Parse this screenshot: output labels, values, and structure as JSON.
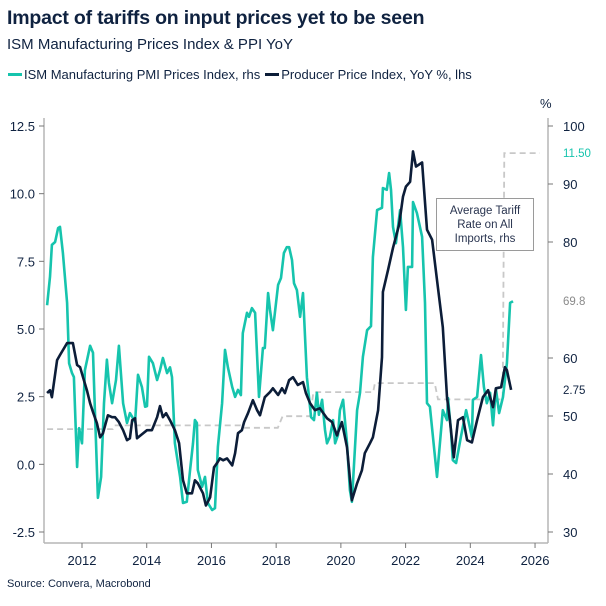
{
  "title": "Impact of tariffs on input prices yet to be seen",
  "subtitle": "ISM Manufacturing Prices Index & PPI YoY",
  "source": "Source: Convera, Macrobond",
  "colors": {
    "ism": "#16c4ad",
    "ppi": "#0c1d38",
    "tariff": "#c8c8c8",
    "axis": "#b5b5b5"
  },
  "chart_data": {
    "type": "line",
    "title": "Impact of tariffs on input prices yet to be seen",
    "legend_position": "top-left",
    "x_ticks": [
      "2012",
      "2014",
      "2016",
      "2018",
      "2020",
      "2022",
      "2024",
      "2026"
    ],
    "xlim": [
      2010.92,
      2026.5
    ],
    "left_axis": {
      "ticks": [
        "12.5",
        "10.0",
        "7.5",
        "5.0",
        "2.5",
        "0.0",
        "-2.5"
      ],
      "ylim": [
        -2.5,
        12.5
      ]
    },
    "right_axis": {
      "unit": "%",
      "ticks": [
        "100",
        "90",
        "80",
        "60",
        "50",
        "40",
        "30"
      ],
      "ylim": [
        30,
        100
      ]
    },
    "annotation": {
      "line1": "Average Tariff",
      "line2": "Rate on All",
      "line3": "Imports, rhs"
    },
    "end_labels": {
      "tariff": "11.50",
      "ism": "69.8",
      "ppi": "2.75"
    },
    "series": [
      {
        "name": "ISM Manufacturing PMI Prices Index, rhs",
        "axis": "right",
        "x": [
          2010.92,
          2011.01,
          2011.07,
          2011.17,
          2011.26,
          2011.32,
          2011.41,
          2011.54,
          2011.6,
          2011.69,
          2011.75,
          2011.85,
          2011.91,
          2012.0,
          2012.09,
          2012.25,
          2012.34,
          2012.4,
          2012.49,
          2012.59,
          2012.68,
          2012.77,
          2012.83,
          2012.93,
          2013.05,
          2013.14,
          2013.27,
          2013.39,
          2013.48,
          2013.64,
          2013.73,
          2013.85,
          2013.95,
          2014.01,
          2014.07,
          2014.19,
          2014.32,
          2014.41,
          2014.5,
          2014.63,
          2014.72,
          2014.78,
          2014.87,
          2015.03,
          2015.12,
          2015.24,
          2015.34,
          2015.43,
          2015.49,
          2015.55,
          2015.58,
          2015.71,
          2015.8,
          2015.89,
          2016.02,
          2016.11,
          2016.2,
          2016.33,
          2016.42,
          2016.51,
          2016.64,
          2016.73,
          2016.82,
          2016.91,
          2016.97,
          2017.1,
          2017.16,
          2017.25,
          2017.35,
          2017.47,
          2017.59,
          2017.65,
          2017.75,
          2017.81,
          2017.9,
          2018.06,
          2018.15,
          2018.24,
          2018.33,
          2018.4,
          2018.49,
          2018.55,
          2018.64,
          2018.74,
          2018.83,
          2018.95,
          2019.08,
          2019.17,
          2019.26,
          2019.32,
          2019.42,
          2019.51,
          2019.57,
          2019.66,
          2019.76,
          2019.82,
          2019.91,
          2019.97,
          2020.07,
          2020.19,
          2020.28,
          2020.34,
          2020.5,
          2020.59,
          2020.68,
          2020.81,
          2020.93,
          2020.99,
          2021.12,
          2021.27,
          2021.3,
          2021.42,
          2021.49,
          2021.55,
          2021.61,
          2021.7,
          2021.83,
          2021.92,
          2022.01,
          2022.07,
          2022.2,
          2022.23,
          2022.35,
          2022.51,
          2022.6,
          2022.66,
          2022.75,
          2022.97,
          2023.15,
          2023.28,
          2023.31,
          2023.4,
          2023.46,
          2023.56,
          2023.71,
          2023.87,
          2024.05,
          2024.08,
          2024.21,
          2024.33,
          2024.42,
          2024.51,
          2024.61,
          2024.7,
          2024.79,
          2024.89,
          2025.01,
          2025.13,
          2025.23,
          2025.32
        ],
        "values": [
          69.1,
          74.0,
          79.5,
          80.0,
          82.4,
          82.6,
          78.1,
          69.5,
          59.1,
          57.4,
          56.7,
          41.2,
          47.9,
          45.3,
          57.9,
          62.1,
          60.9,
          51.0,
          35.9,
          39.5,
          52.2,
          59.7,
          55.7,
          52.2,
          56.2,
          62.1,
          52.2,
          48.8,
          50.5,
          49.0,
          57.1,
          55.0,
          51.6,
          51.7,
          60.2,
          59.1,
          56.2,
          57.9,
          60.0,
          57.4,
          58.4,
          56.7,
          45.3,
          39.5,
          35.0,
          35.2,
          40.7,
          45.3,
          49.3,
          48.8,
          40.7,
          37.8,
          39.5,
          35.0,
          33.8,
          34.1,
          44.7,
          52.2,
          61.4,
          58.4,
          55.0,
          53.3,
          54.5,
          53.6,
          64.3,
          67.8,
          67.1,
          68.6,
          67.8,
          53.3,
          61.7,
          61.7,
          71.2,
          68.3,
          64.8,
          72.6,
          73.8,
          78.1,
          79.1,
          79.1,
          76.9,
          72.9,
          71.7,
          67.1,
          71.2,
          56.7,
          49.8,
          49.3,
          54.0,
          50.2,
          52.8,
          47.6,
          45.3,
          46.4,
          49.3,
          45.3,
          46.7,
          51.0,
          52.8,
          45.3,
          37.2,
          35.2,
          51.0,
          54.0,
          60.2,
          64.8,
          65.5,
          77.4,
          85.5,
          85.9,
          89.3,
          89.0,
          91.9,
          89.0,
          82.6,
          79.8,
          85.5,
          79.1,
          68.3,
          75.7,
          75.7,
          86.9,
          85.0,
          80.9,
          69.5,
          52.2,
          51.6,
          39.5,
          51.0,
          49.3,
          53.1,
          47.6,
          42.4,
          41.9,
          46.4,
          51.0,
          46.4,
          52.8,
          53.3,
          60.5,
          55.0,
          52.2,
          54.0,
          48.4,
          54.7,
          50.5,
          53.3,
          59.1,
          69.5,
          69.8
        ]
      },
      {
        "name": "Producer Price Index, YoY %, lhs",
        "axis": "left",
        "x": [
          2010.92,
          2011.01,
          2011.07,
          2011.23,
          2011.32,
          2011.41,
          2011.54,
          2011.72,
          2011.85,
          2011.94,
          2012.03,
          2012.15,
          2012.25,
          2012.34,
          2012.46,
          2012.56,
          2012.65,
          2012.8,
          2012.93,
          2013.02,
          2013.14,
          2013.27,
          2013.39,
          2013.48,
          2013.55,
          2013.64,
          2013.7,
          2013.89,
          2014.01,
          2014.16,
          2014.32,
          2014.41,
          2014.5,
          2014.6,
          2014.72,
          2014.87,
          2015.0,
          2015.12,
          2015.24,
          2015.4,
          2015.49,
          2015.58,
          2015.74,
          2015.83,
          2015.96,
          2016.08,
          2016.17,
          2016.26,
          2016.36,
          2016.48,
          2016.64,
          2016.73,
          2016.82,
          2016.94,
          2017.01,
          2017.13,
          2017.28,
          2017.41,
          2017.5,
          2017.65,
          2017.81,
          2017.9,
          2018.06,
          2018.18,
          2018.27,
          2018.4,
          2018.52,
          2018.67,
          2018.83,
          2018.92,
          2019.05,
          2019.2,
          2019.35,
          2019.57,
          2019.73,
          2019.88,
          2020.03,
          2020.19,
          2020.34,
          2020.5,
          2020.65,
          2020.74,
          2020.9,
          2020.99,
          2021.15,
          2021.27,
          2021.3,
          2021.46,
          2021.61,
          2021.8,
          2021.92,
          2022.01,
          2022.14,
          2022.23,
          2022.32,
          2022.51,
          2022.66,
          2022.82,
          2022.97,
          2023.15,
          2023.28,
          2023.37,
          2023.49,
          2023.62,
          2023.77,
          2023.9,
          2024.05,
          2024.21,
          2024.39,
          2024.55,
          2024.7,
          2024.79,
          2024.95,
          2025.07,
          2025.13,
          2025.26
        ],
        "values": [
          2.63,
          2.74,
          2.48,
          3.85,
          4.04,
          4.22,
          4.48,
          4.48,
          3.67,
          3.59,
          3.22,
          2.74,
          2.26,
          1.93,
          1.52,
          1.0,
          1.15,
          1.81,
          1.74,
          1.74,
          1.56,
          1.26,
          0.89,
          0.96,
          1.63,
          1.7,
          0.96,
          1.15,
          1.26,
          1.26,
          1.74,
          2.15,
          1.74,
          1.89,
          1.63,
          1.26,
          0.78,
          -0.59,
          -1.07,
          -1.07,
          -0.59,
          -0.7,
          -1.07,
          -1.52,
          -1.22,
          -0.11,
          0.04,
          0.22,
          0.15,
          0.22,
          -0.04,
          0.41,
          1.15,
          1.26,
          1.56,
          1.89,
          2.37,
          2.0,
          1.81,
          2.48,
          2.67,
          2.81,
          2.56,
          2.81,
          2.63,
          3.11,
          3.22,
          2.93,
          3.04,
          2.63,
          2.26,
          2.0,
          2.07,
          1.7,
          1.56,
          1.07,
          1.56,
          0.63,
          -1.33,
          -0.7,
          -0.22,
          0.41,
          0.78,
          1.0,
          2.0,
          3.96,
          6.37,
          7.19,
          8.0,
          8.85,
          9.89,
          10.26,
          10.44,
          11.56,
          11.0,
          11.15,
          8.67,
          8.3,
          6.81,
          5.07,
          2.48,
          1.63,
          0.26,
          1.63,
          1.74,
          0.89,
          0.81,
          1.63,
          2.48,
          2.74,
          2.11,
          2.81,
          2.85,
          3.59,
          3.48,
          2.75
        ]
      },
      {
        "name": "Average Tariff Rate on All Imports, rhs",
        "axis": "left",
        "style": "dashed",
        "x": [
          2010.92,
          2012.95,
          2013.0,
          2016.9,
          2017.0,
          2018.05,
          2018.2,
          2019.05,
          2019.15,
          2021.0,
          2021.05,
          2022.9,
          2023.0,
          2025.0,
          2025.05,
          2026.15
        ],
        "values": [
          1.3,
          1.3,
          1.44,
          1.44,
          1.35,
          1.35,
          1.78,
          1.78,
          2.67,
          2.67,
          3.0,
          3.0,
          2.4,
          2.4,
          11.5,
          11.5
        ]
      }
    ]
  }
}
